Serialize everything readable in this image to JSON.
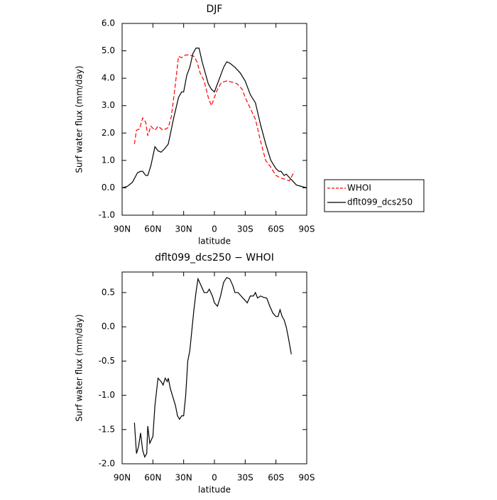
{
  "chart_data": [
    {
      "type": "line",
      "title": "DJF",
      "ylabel": "Surf water flux (mm/day)",
      "xlabel": "latitude",
      "xlim": [
        90,
        -90
      ],
      "ylim": [
        -1,
        6
      ],
      "xticks": [
        {
          "value": 90,
          "label": "90N"
        },
        {
          "value": 60,
          "label": "60N"
        },
        {
          "value": 30,
          "label": "30N"
        },
        0,
        {
          "value": -30,
          "label": "30S"
        },
        {
          "value": -60,
          "label": "60S"
        },
        {
          "value": -90,
          "label": "90S"
        }
      ],
      "yticks": [
        {
          "value": -1,
          "label": "-1.0"
        },
        {
          "value": 0,
          "label": "0.0"
        },
        {
          "value": 1,
          "label": "1.0"
        },
        {
          "value": 2,
          "label": "2.0"
        },
        {
          "value": 3,
          "label": "3.0"
        },
        {
          "value": 4,
          "label": "4.0"
        },
        {
          "value": 5,
          "label": "5.0"
        },
        {
          "value": 6,
          "label": "6.0"
        }
      ],
      "legend": "right",
      "series": [
        {
          "name": "WHOI",
          "color": "#ff0000",
          "line_style": "dashed",
          "x": [
            78,
            76,
            73,
            70,
            67,
            65,
            62,
            58,
            55,
            50,
            45,
            42,
            38,
            35,
            32,
            28,
            24,
            20,
            17,
            14,
            10,
            6,
            3,
            0,
            -3,
            -7,
            -12,
            -18,
            -22,
            -27,
            -30,
            -35,
            -40,
            -45,
            -50,
            -55,
            -60,
            -65,
            -70,
            -73,
            -78
          ],
          "values": [
            1.6,
            2.1,
            2.15,
            2.55,
            2.4,
            1.9,
            2.25,
            2.1,
            2.25,
            2.1,
            2.2,
            2.6,
            3.8,
            4.8,
            4.75,
            4.85,
            4.85,
            4.8,
            4.6,
            4.2,
            3.9,
            3.3,
            3.0,
            3.3,
            3.6,
            3.85,
            3.9,
            3.85,
            3.8,
            3.6,
            3.3,
            2.9,
            2.5,
            1.7,
            1.0,
            0.75,
            0.45,
            0.35,
            0.3,
            0.25,
            0.6
          ]
        },
        {
          "name": "dflt099_dcs250",
          "color": "#000000",
          "line_style": "solid",
          "x": [
            90,
            85,
            80,
            75,
            72,
            70,
            67,
            65,
            62,
            58,
            55,
            52,
            48,
            45,
            40,
            35,
            32,
            30,
            27,
            24,
            21,
            18,
            15,
            12,
            9,
            6,
            3,
            0,
            -3,
            -6,
            -9,
            -12,
            -15,
            -20,
            -25,
            -30,
            -35,
            -40,
            -45,
            -50,
            -55,
            -60,
            -63,
            -65,
            -68,
            -70,
            -75,
            -80,
            -85,
            -90
          ],
          "values": [
            0.0,
            0.05,
            0.2,
            0.55,
            0.6,
            0.6,
            0.45,
            0.45,
            0.8,
            1.5,
            1.35,
            1.3,
            1.45,
            1.6,
            2.5,
            3.3,
            3.5,
            3.5,
            4.1,
            4.4,
            4.9,
            5.1,
            5.1,
            4.6,
            4.2,
            3.8,
            3.6,
            3.5,
            3.8,
            4.1,
            4.4,
            4.6,
            4.55,
            4.4,
            4.2,
            3.9,
            3.4,
            3.1,
            2.3,
            1.6,
            1.0,
            0.7,
            0.6,
            0.6,
            0.45,
            0.5,
            0.3,
            0.1,
            0.05,
            0.0
          ]
        }
      ]
    },
    {
      "type": "line",
      "title": "dflt099_dcs250 − WHOI",
      "ylabel": "Surf water flux (mm/day)",
      "xlabel": "latitude",
      "xlim": [
        90,
        -90
      ],
      "ylim": [
        -2,
        0.8
      ],
      "xticks": [
        {
          "value": 90,
          "label": "90N"
        },
        {
          "value": 60,
          "label": "60N"
        },
        {
          "value": 30,
          "label": "30N"
        },
        0,
        {
          "value": -30,
          "label": "30S"
        },
        {
          "value": -60,
          "label": "60S"
        },
        {
          "value": -90,
          "label": "90S"
        }
      ],
      "yticks": [
        {
          "value": -2,
          "label": "-2.0"
        },
        -1.5,
        {
          "value": -1,
          "label": "-1.0"
        },
        -0.5,
        {
          "value": 0,
          "label": "0.0"
        },
        0.5
      ],
      "series": [
        {
          "color": "#000000",
          "line_style": "solid",
          "x": [
            78,
            76,
            74,
            72,
            70,
            68,
            66,
            65,
            63,
            60,
            58,
            55,
            52,
            50,
            48,
            46,
            45,
            43,
            40,
            38,
            36,
            34,
            32,
            30,
            28,
            26,
            24,
            22,
            20,
            18,
            16,
            13,
            10,
            7,
            5,
            2,
            0,
            -3,
            -6,
            -9,
            -12,
            -15,
            -18,
            -20,
            -23,
            -26,
            -29,
            -32,
            -35,
            -38,
            -40,
            -42,
            -45,
            -48,
            -51,
            -54,
            -57,
            -60,
            -62,
            -64,
            -66,
            -68,
            -70,
            -72,
            -75
          ],
          "values": [
            -1.4,
            -1.85,
            -1.75,
            -1.55,
            -1.8,
            -1.9,
            -1.85,
            -1.45,
            -1.7,
            -1.6,
            -1.15,
            -0.75,
            -0.8,
            -0.85,
            -0.75,
            -0.8,
            -0.75,
            -0.9,
            -1.05,
            -1.15,
            -1.3,
            -1.35,
            -1.3,
            -1.3,
            -1.0,
            -0.5,
            -0.35,
            -0.05,
            0.25,
            0.5,
            0.7,
            0.6,
            0.5,
            0.5,
            0.55,
            0.45,
            0.35,
            0.3,
            0.45,
            0.65,
            0.72,
            0.7,
            0.6,
            0.5,
            0.5,
            0.45,
            0.4,
            0.35,
            0.45,
            0.45,
            0.5,
            0.42,
            0.45,
            0.43,
            0.42,
            0.3,
            0.2,
            0.15,
            0.15,
            0.25,
            0.15,
            0.1,
            0.0,
            -0.15,
            -0.4
          ]
        }
      ]
    }
  ]
}
